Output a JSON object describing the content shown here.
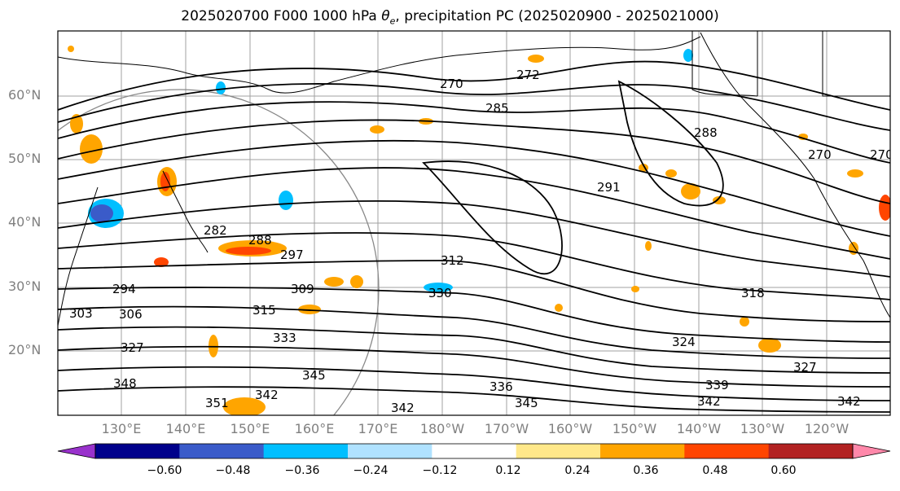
{
  "title": {
    "prefix": "2025020700 F000 1000 hPa ",
    "theta": "θ",
    "theta_sub": "e",
    "suffix": ", precipitation PC (2025020900 - 2025021000)"
  },
  "map": {
    "projection": "plate-carree",
    "background": "#ffffff",
    "coastline_color": "#000000",
    "gridline_color": "#a0a0a0",
    "lat_labels": [
      "60°N",
      "50°N",
      "40°N",
      "30°N",
      "20°N"
    ],
    "lon_labels": [
      "130°E",
      "140°E",
      "150°E",
      "160°E",
      "170°E",
      "180°W",
      "170°W",
      "160°W",
      "150°W",
      "140°W",
      "130°W",
      "120°W"
    ],
    "contour_color": "#000000",
    "contour_labels": [
      "270",
      "272",
      "285",
      "288",
      "270",
      "270",
      "291",
      "282",
      "288",
      "297",
      "312",
      "294",
      "303",
      "306",
      "309",
      "330",
      "318",
      "315",
      "333",
      "324",
      "327",
      "327",
      "348",
      "351",
      "342",
      "345",
      "336",
      "345",
      "339",
      "342",
      "342",
      "342"
    ]
  },
  "colorbar": {
    "colors": [
      "#9932cc",
      "#00008b",
      "#3a5bc9",
      "#00bfff",
      "#b0e2ff",
      "#ffffff",
      "#ffe88a",
      "#ffa500",
      "#ff4500",
      "#b22222",
      "#ff88aa"
    ],
    "ticks": [
      "−0.60",
      "−0.48",
      "−0.36",
      "−0.24",
      "−0.12",
      "0.12",
      "0.24",
      "0.36",
      "0.48",
      "0.60"
    ],
    "extend": "both"
  }
}
